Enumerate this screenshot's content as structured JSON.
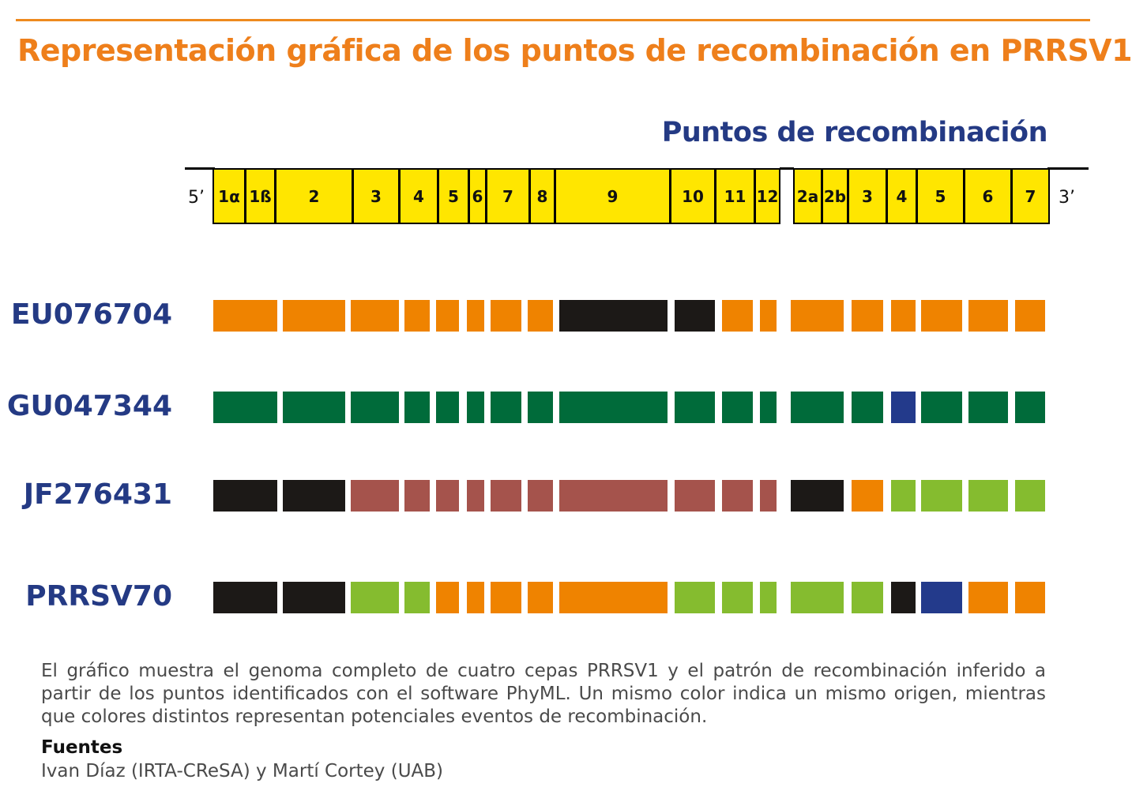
{
  "header": {
    "title": "Representación gráfica de los puntos de recombinación en PRRSV1",
    "subtitle": "Puntos de recombinación"
  },
  "genome": {
    "five_prime": "5’",
    "three_prime": "3’",
    "genes": [
      "1α",
      "1ß",
      "2",
      "3",
      "4",
      "5",
      "6",
      "7",
      "8",
      "9",
      "10",
      "11",
      "12",
      "2a",
      "2b",
      "3",
      "4",
      "5",
      "6",
      "7"
    ],
    "gene_color": "#ffe600"
  },
  "colors": {
    "orange": "#ef8300",
    "black": "#1c1917",
    "dark_green": "#006b3a",
    "navy": "#233a8b",
    "brown_red": "#a5534c",
    "light_green": "#85bc2f"
  },
  "strains": [
    {
      "name": "EU076704",
      "colors": [
        "orange",
        "orange",
        "orange",
        "orange",
        "orange",
        "orange",
        "orange",
        "orange",
        "black",
        "black",
        "orange",
        "orange",
        "orange",
        "orange",
        "orange",
        "orange",
        "orange",
        "orange"
      ]
    },
    {
      "name": "GU047344",
      "colors": [
        "dark_green",
        "dark_green",
        "dark_green",
        "dark_green",
        "dark_green",
        "dark_green",
        "dark_green",
        "dark_green",
        "dark_green",
        "dark_green",
        "dark_green",
        "dark_green",
        "dark_green",
        "dark_green",
        "navy",
        "dark_green",
        "dark_green",
        "dark_green"
      ]
    },
    {
      "name": "JF276431",
      "colors": [
        "black",
        "black",
        "brown_red",
        "brown_red",
        "brown_red",
        "brown_red",
        "brown_red",
        "brown_red",
        "brown_red",
        "brown_red",
        "brown_red",
        "brown_red",
        "black",
        "orange",
        "light_green",
        "light_green",
        "light_green",
        "light_green"
      ]
    },
    {
      "name": "PRRSV70",
      "colors": [
        "black",
        "black",
        "light_green",
        "light_green",
        "orange",
        "orange",
        "orange",
        "orange",
        "orange",
        "light_green",
        "light_green",
        "light_green",
        "light_green",
        "light_green",
        "black",
        "navy",
        "orange",
        "orange"
      ]
    }
  ],
  "caption": "El gráfico muestra el genoma completo de cuatro cepas PRRSV1 y el patrón de recombinación inferido a partir de los puntos identificados con el software PhyML. Un mismo color indica un mismo origen, mientras que colores distintos representan potenciales eventos de recombinación.",
  "sources": {
    "title": "Fuentes",
    "text": "Ivan Díaz (IRTA-CReSA) y Martí Cortey (UAB)"
  }
}
